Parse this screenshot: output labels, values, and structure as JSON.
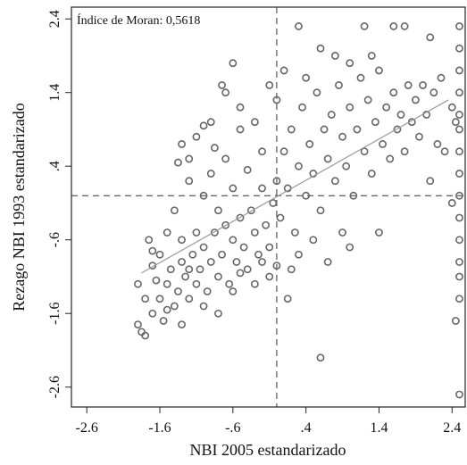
{
  "chart_data": {
    "type": "scatter",
    "annotation": "Índice de Moran: 0,5618",
    "x_label": "NBI 2005 estandarizado",
    "y_label": "Rezago NBI 1993 estandarizado",
    "xlim": [
      -2.81,
      2.58
    ],
    "ylim": [
      -2.87,
      2.56
    ],
    "xticks": [
      -2.6,
      -1.6,
      {
        "value": -0.6,
        "label": "-.6"
      },
      {
        "value": 0.4,
        "label": ".4"
      },
      1.4,
      2.4
    ],
    "yticks": [
      -2.6,
      -1.6,
      {
        "value": -0.6,
        "label": "-.6"
      },
      {
        "value": 0.4,
        "label": ".4"
      },
      1.4,
      2.4
    ],
    "reference_lines": {
      "x": 0,
      "y": 0
    },
    "fit_line": {
      "x": [
        -1.85,
        2.35
      ],
      "y": [
        -1.05,
        1.3
      ]
    },
    "color": "#666666",
    "x": [
      -1.9,
      -1.85,
      -1.8,
      -1.7,
      -1.6,
      -1.55,
      -1.5,
      -1.45,
      -1.4,
      -1.35,
      -1.3,
      -1.25,
      -1.2,
      -1.15,
      -1.1,
      -1.05,
      -1.0,
      -0.95,
      -0.9,
      -0.85,
      -0.8,
      -0.75,
      -0.7,
      -0.65,
      -0.6,
      -0.55,
      -0.5,
      -0.45,
      -0.4,
      -0.35,
      -0.3,
      -0.25,
      -0.2,
      -0.15,
      -0.1,
      -0.05,
      -1.75,
      -1.7,
      -1.65,
      -1.6,
      -1.5,
      -1.4,
      -1.3,
      -1.2,
      -1.1,
      -1.0,
      -0.9,
      -0.8,
      -0.7,
      -0.6,
      -0.5,
      -0.4,
      -0.3,
      -0.2,
      -0.1,
      -0.7,
      -0.75,
      -0.6,
      -0.5,
      -1.3,
      -1.35,
      -1.2,
      -1.0,
      -0.9,
      -0.85,
      -1.1,
      -1.9,
      -1.8,
      -1.7,
      -1.5,
      -1.3,
      -1.2,
      -1.0,
      -0.8,
      -0.6,
      -0.5,
      -0.3,
      -0.1,
      0.0,
      0.05,
      0.1,
      0.15,
      0.2,
      0.25,
      0.3,
      0.35,
      0.4,
      0.45,
      0.5,
      0.55,
      0.6,
      0.65,
      0.7,
      0.75,
      0.8,
      0.85,
      0.9,
      0.95,
      1.0,
      1.05,
      1.1,
      1.15,
      1.2,
      1.25,
      1.3,
      1.35,
      1.4,
      1.45,
      1.5,
      1.55,
      1.6,
      1.65,
      1.7,
      1.75,
      1.8,
      1.85,
      1.9,
      1.95,
      2.0,
      2.05,
      2.1,
      2.15,
      2.2,
      2.25,
      0.3,
      0.5,
      0.7,
      0.9,
      1.0,
      0.2,
      0.0,
      -0.2,
      0.6,
      0.3,
      1.2,
      1.6,
      1.75,
      2.1,
      0.6,
      0.1,
      0.4,
      0.8,
      1.0,
      1.3,
      0.0,
      2.4,
      2.3,
      1.4,
      0.15,
      2.5,
      2.5,
      2.5,
      2.5,
      2.5,
      2.5,
      2.5,
      2.5,
      2.5,
      2.5,
      2.5,
      2.5,
      2.5,
      2.5,
      2.5,
      2.45,
      2.4,
      2.45
    ],
    "y": [
      -1.75,
      -1.85,
      -1.9,
      -1.6,
      -1.4,
      -1.7,
      -1.2,
      -1.0,
      -1.5,
      -1.3,
      -0.9,
      -1.1,
      -1.4,
      -0.8,
      -1.2,
      -1.0,
      -0.7,
      -1.3,
      -0.9,
      -0.5,
      -1.1,
      -0.8,
      -0.4,
      -1.2,
      -0.6,
      -0.9,
      -0.3,
      -0.7,
      -1.0,
      -0.2,
      -0.5,
      -0.8,
      0.1,
      -0.4,
      -1.1,
      -0.1,
      -0.6,
      -0.95,
      -1.15,
      -0.8,
      -0.5,
      -0.2,
      -0.6,
      0.2,
      -0.5,
      0.0,
      0.3,
      -0.2,
      0.5,
      0.1,
      0.9,
      0.35,
      1.0,
      0.6,
      1.5,
      1.4,
      1.5,
      1.8,
      1.2,
      0.7,
      0.45,
      0.5,
      0.95,
      1.0,
      0.65,
      0.8,
      -1.2,
      -1.4,
      -0.75,
      -1.55,
      -1.75,
      -1.0,
      -1.5,
      -1.6,
      -1.3,
      -1.05,
      -1.2,
      -0.7,
      0.2,
      -0.3,
      0.6,
      0.1,
      0.9,
      -0.5,
      0.4,
      1.2,
      0.0,
      0.7,
      0.3,
      1.4,
      -0.2,
      0.9,
      0.5,
      1.1,
      0.2,
      1.5,
      0.8,
      0.4,
      1.2,
      0.0,
      0.9,
      1.6,
      0.6,
      1.3,
      0.3,
      1.0,
      1.7,
      0.7,
      1.2,
      0.5,
      1.4,
      0.9,
      1.1,
      0.6,
      1.5,
      1.0,
      1.3,
      0.8,
      1.5,
      1.1,
      0.2,
      1.4,
      0.7,
      1.6,
      -0.8,
      -0.6,
      -0.9,
      -0.5,
      -0.7,
      -1.0,
      -0.95,
      -0.9,
      -2.2,
      2.3,
      2.3,
      2.3,
      2.3,
      2.15,
      2.0,
      1.7,
      1.6,
      1.9,
      1.8,
      1.9,
      1.3,
      1.2,
      0.6,
      -0.5,
      -1.4,
      2.3,
      2.0,
      1.7,
      1.4,
      1.1,
      0.9,
      0.6,
      0.3,
      0.0,
      -0.3,
      -0.6,
      -0.9,
      -1.1,
      -1.4,
      -2.7,
      -1.7,
      -0.1,
      1.0
    ]
  }
}
